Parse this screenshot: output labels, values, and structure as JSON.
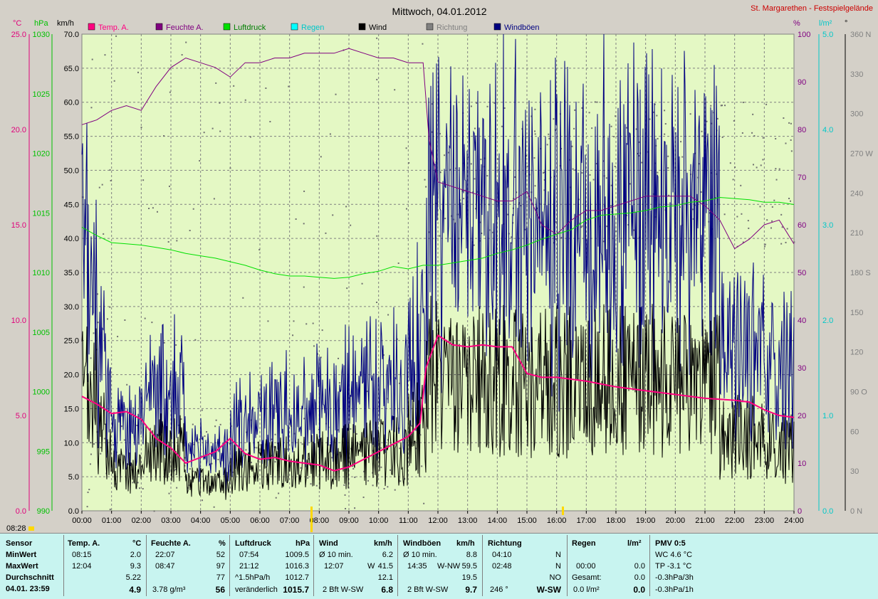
{
  "chart_data": {
    "type": "line",
    "title": "Mittwoch, 04.01.2012",
    "station": "St. Margarethen - Festspielgelände",
    "x_ticks": [
      "00:00",
      "01:00",
      "02:00",
      "03:00",
      "04:00",
      "05:00",
      "06:00",
      "07:00",
      "08:00",
      "09:00",
      "10:00",
      "11:00",
      "12:00",
      "13:00",
      "14:00",
      "15:00",
      "16:00",
      "17:00",
      "18:00",
      "19:00",
      "20:00",
      "21:00",
      "22:00",
      "23:00",
      "24:00"
    ],
    "axes": {
      "temp": {
        "unit": "°C",
        "range": [
          0,
          25
        ],
        "ticks": [
          "0.0",
          "5.0",
          "10.0",
          "15.0",
          "20.0",
          "25.0"
        ],
        "color": "#e0007a"
      },
      "pressure": {
        "unit": "hPa",
        "range": [
          990,
          1030
        ],
        "ticks": [
          "990",
          "995",
          "1000",
          "1005",
          "1010",
          "1015",
          "1020",
          "1025",
          "1030"
        ],
        "color": "#00c000"
      },
      "wind": {
        "unit": "km/h",
        "range": [
          0,
          70
        ],
        "ticks": [
          "0.0",
          "5.0",
          "10.0",
          "15.0",
          "20.0",
          "25.0",
          "30.0",
          "35.0",
          "40.0",
          "45.0",
          "50.0",
          "55.0",
          "60.0",
          "65.0",
          "70.0"
        ],
        "color": "#000000"
      },
      "humidity": {
        "unit": "%",
        "range": [
          0,
          100
        ],
        "ticks": [
          "0",
          "10",
          "20",
          "30",
          "40",
          "50",
          "60",
          "70",
          "80",
          "90",
          "100"
        ],
        "color": "#800080"
      },
      "rain": {
        "unit": "l/m²",
        "range": [
          0,
          5
        ],
        "ticks": [
          "0.0",
          "1.0",
          "2.0",
          "3.0",
          "4.0",
          "5.0"
        ],
        "color": "#00c8c8"
      },
      "direction": {
        "unit": "°",
        "range": [
          0,
          360
        ],
        "ticks": [
          "0 N",
          "30",
          "60",
          "90 O",
          "120",
          "150",
          "180 S",
          "210",
          "240",
          "270 W",
          "300",
          "330",
          "360 N"
        ],
        "color": "#808080"
      }
    },
    "legend": [
      {
        "name": "Temp. A.",
        "color": "#ff0080"
      },
      {
        "name": "Feuchte A.",
        "color": "#800080"
      },
      {
        "name": "Luftdruck",
        "color": "#00e000"
      },
      {
        "name": "Regen",
        "color": "#00ffff"
      },
      {
        "name": "Wind",
        "color": "#000000"
      },
      {
        "name": "Richtung",
        "color": "#808080"
      },
      {
        "name": "Windböen",
        "color": "#000080"
      }
    ],
    "series": [
      {
        "name": "Temp. A.",
        "unit": "°C",
        "x": [
          0,
          0.5,
          1,
          1.5,
          2,
          2.5,
          3,
          3.5,
          4,
          4.5,
          5,
          5.5,
          6,
          6.5,
          7,
          7.5,
          8,
          8.5,
          9,
          9.5,
          10,
          10.5,
          11,
          11.4,
          11.6,
          12,
          12.5,
          13,
          13.5,
          14,
          14.5,
          15,
          15.5,
          16,
          17,
          18,
          19,
          20,
          21,
          22,
          22.5,
          23,
          23.5,
          24
        ],
        "values": [
          6.0,
          5.6,
          5.1,
          5.2,
          4.8,
          3.8,
          3.3,
          2.5,
          2.8,
          3.1,
          3.8,
          3.0,
          2.7,
          2.8,
          2.6,
          2.5,
          2.4,
          2.1,
          2.3,
          2.7,
          3.1,
          3.5,
          3.9,
          4.6,
          7.5,
          9.2,
          8.7,
          8.6,
          8.7,
          8.6,
          8.6,
          7.2,
          7.0,
          7.0,
          6.8,
          6.5,
          6.3,
          6.1,
          5.9,
          5.8,
          5.7,
          5.3,
          5.0,
          4.9
        ]
      },
      {
        "name": "Feuchte A.",
        "unit": "%",
        "x": [
          0,
          0.5,
          1,
          1.5,
          2,
          2.5,
          3,
          3.5,
          4,
          4.5,
          5,
          5.5,
          6,
          6.5,
          7,
          7.5,
          8,
          8.5,
          9,
          9.5,
          10,
          10.5,
          11,
          11.3,
          11.5,
          11.7,
          12,
          12.5,
          13,
          13.5,
          14,
          14.5,
          15,
          15.5,
          16,
          16.5,
          17,
          17.5,
          18,
          18.5,
          19,
          19.5,
          20,
          20.5,
          21,
          21.5,
          22,
          22.5,
          23,
          23.5,
          24
        ],
        "values": [
          81,
          82,
          84,
          85,
          84,
          89,
          93,
          95,
          94,
          93,
          91,
          94,
          94,
          95,
          95,
          96,
          96,
          96,
          97,
          96,
          95,
          95,
          94,
          94,
          94,
          78,
          69,
          68,
          67,
          66,
          65,
          65,
          67,
          60,
          58,
          61,
          63,
          63,
          64,
          65,
          66,
          66,
          66,
          66,
          64,
          61,
          55,
          57,
          60,
          61,
          56
        ]
      },
      {
        "name": "Luftdruck",
        "unit": "hPa",
        "x": [
          0,
          0.5,
          1,
          1.5,
          2,
          2.5,
          3,
          3.5,
          4,
          4.5,
          5,
          5.5,
          6,
          6.5,
          7,
          7.5,
          8,
          8.5,
          9,
          9.5,
          10,
          10.5,
          11,
          11.5,
          12,
          12.5,
          13,
          13.5,
          14,
          14.5,
          15,
          15.5,
          16,
          16.5,
          17,
          17.5,
          18,
          18.5,
          19,
          19.5,
          20,
          20.5,
          21,
          21.5,
          22,
          22.5,
          23,
          23.5,
          24
        ],
        "values": [
          1013.8,
          1013.1,
          1012.5,
          1012.4,
          1012.3,
          1012.1,
          1011.9,
          1011.6,
          1011.4,
          1011.2,
          1010.9,
          1010.6,
          1010.2,
          1009.9,
          1009.7,
          1009.7,
          1009.6,
          1009.5,
          1009.6,
          1009.9,
          1010.1,
          1010.5,
          1010.3,
          1010.6,
          1010.6,
          1010.8,
          1011.0,
          1011.2,
          1011.6,
          1011.9,
          1012.3,
          1012.8,
          1013.2,
          1013.6,
          1014.4,
          1014.8,
          1014.9,
          1015.0,
          1015.2,
          1015.5,
          1015.6,
          1015.9,
          1016.0,
          1016.3,
          1016.2,
          1016.1,
          1015.9,
          1015.9,
          1015.7
        ]
      }
    ],
    "stats": {
      "sensor_header": "Sensor",
      "rows": [
        "MinWert",
        "MaxWert",
        "Durchschnitt",
        "04.01. 23:59"
      ],
      "temp": {
        "title": "Temp. A.",
        "unit": "°C",
        "min_time": "08:15",
        "min": "2.0",
        "max_time": "12:04",
        "max": "9.3",
        "avg": "5.22",
        "current": "4.9"
      },
      "humidity": {
        "title": "Feuchte A.",
        "unit": "%",
        "min_time": "22:07",
        "min": "52",
        "max_time": "08:47",
        "max": "97",
        "avg": "77",
        "abs": "3.78 g/m³",
        "current": "56"
      },
      "pressure": {
        "title": "Luftdruck",
        "unit": "hPa",
        "min_time": "07:54",
        "min": "1009.5",
        "max_time": "21:12",
        "max": "1016.3",
        "trend": "^1.5hPa/h",
        "avg": "1012.7",
        "tendency": "veränderlich",
        "current": "1015.7"
      },
      "wind": {
        "title": "Wind",
        "unit": "km/h",
        "avg10_label": "Ø 10 min.",
        "avg10": "6.2",
        "max_time": "12:07",
        "max_dir": "W",
        "max": "41.5",
        "avg": "12.1",
        "bft": "2 Bft W-SW",
        "current": "6.8"
      },
      "gusts": {
        "title": "Windböen",
        "unit": "km/h",
        "avg10_label": "Ø 10 min.",
        "avg10": "8.8",
        "max_time": "14:35",
        "max_dir": "W-NW",
        "max": "59.5",
        "avg": "19.5",
        "bft": "2 Bft W-SW",
        "current": "9.7"
      },
      "direction": {
        "title": "Richtung",
        "min_time": "04:10",
        "min_dir": "N",
        "max_time": "02:48",
        "max_dir": "N",
        "avg_dir": "NO",
        "deg": "246 °",
        "current": "W-SW"
      },
      "rain": {
        "title": "Regen",
        "unit": "l/m²",
        "max_time": "00:00",
        "max": "0.0",
        "total_label": "Gesamt:",
        "total": "0.0",
        "today": "0.0 l/m²",
        "current": "0.0"
      },
      "pmv": {
        "title": "PMV 0:5",
        "wc": "WC 4.6 °C",
        "tp": "TP -3.1 °C",
        "p3h": "-0.3hPa/3h",
        "p1h": "-0.3hPa/1h"
      }
    },
    "date_stamp": "08:28"
  }
}
